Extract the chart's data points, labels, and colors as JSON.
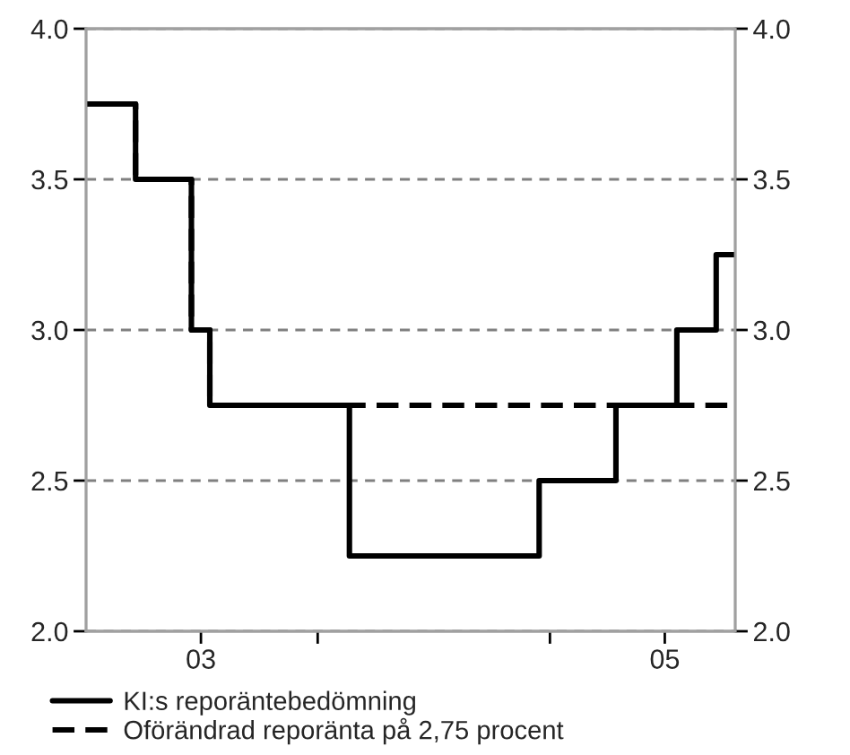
{
  "chart_data": {
    "type": "step",
    "series": [
      {
        "name": "KI:s reporäntebedömning",
        "color": "#000000",
        "line_style": "solid",
        "x": [
          "2003-01-01",
          "2003-03-20",
          "2003-06-16",
          "2003-07-15",
          "2004-02-20",
          "2004-12-15",
          "2005-04-15",
          "2005-07-20",
          "2005-09-20",
          "2005-10-20"
        ],
        "values": [
          3.75,
          3.5,
          3.0,
          2.75,
          2.25,
          2.5,
          2.75,
          3.0,
          3.25,
          3.25
        ]
      },
      {
        "name": "Oförändrad reporänta på 2,75 procent",
        "color": "#000000",
        "line_style": "dashed",
        "x": [
          "2003-01-01",
          "2003-03-20",
          "2003-06-16",
          "2003-07-15",
          "2005-10-20"
        ],
        "values": [
          3.75,
          3.5,
          3.0,
          2.75,
          2.75
        ]
      }
    ],
    "xlim": [
      "2003-01-01",
      "2005-10-20"
    ],
    "xticks": [
      {
        "value": "2003-07-01",
        "label": "03"
      },
      {
        "value": "2004-01-01",
        "label": null
      },
      {
        "value": "2005-01-01",
        "label": null
      },
      {
        "value": "2005-07-01",
        "label": "05"
      }
    ],
    "ylim": [
      2.0,
      4.0
    ],
    "yticks": [
      {
        "value": 2.0,
        "label": "2.0"
      },
      {
        "value": 2.5,
        "label": "2.5"
      },
      {
        "value": 3.0,
        "label": "3.0"
      },
      {
        "value": 3.5,
        "label": "3.5"
      },
      {
        "value": 4.0,
        "label": "4.0"
      }
    ],
    "y2lim": [
      2.0,
      4.0
    ],
    "y2ticks": [
      {
        "value": 2.0,
        "label": "2.0"
      },
      {
        "value": 2.5,
        "label": "2.5"
      },
      {
        "value": 3.0,
        "label": "3.0"
      },
      {
        "value": 3.5,
        "label": "3.5"
      },
      {
        "value": 4.0,
        "label": "4.0"
      }
    ],
    "grid": "y",
    "legend": "bottom",
    "marker": "none"
  }
}
